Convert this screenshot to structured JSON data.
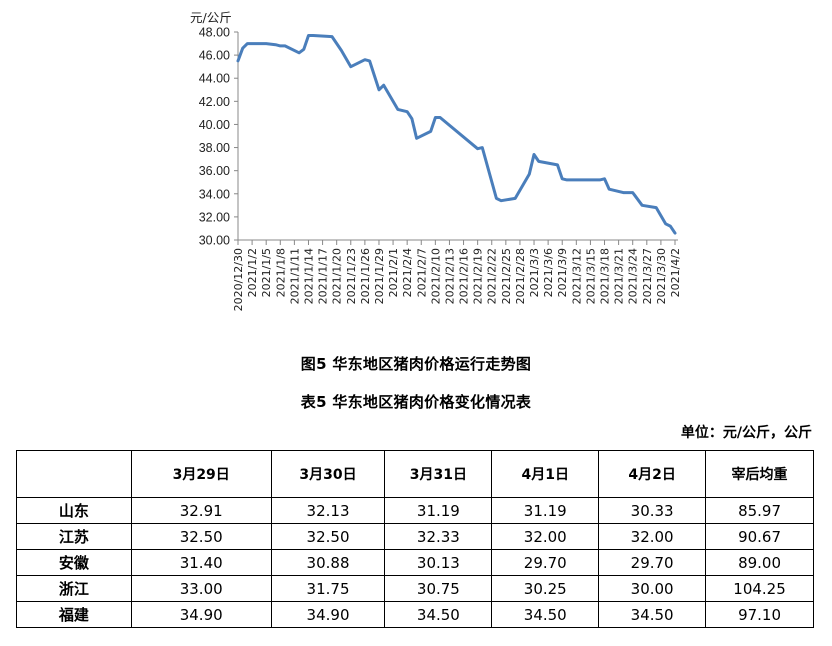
{
  "chart_data": {
    "type": "line",
    "title": "图5 华东地区猪肉价格运行走势图",
    "xlabel": "",
    "ylabel": "元/公斤",
    "ylim": [
      30,
      48
    ],
    "yticks": [
      "48.00",
      "46.00",
      "44.00",
      "42.00",
      "40.00",
      "38.00",
      "36.00",
      "34.00",
      "32.00",
      "30.00"
    ],
    "xticks": [
      "2020/12/30",
      "2021/1/2",
      "2021/1/5",
      "2021/1/8",
      "2021/1/11",
      "2021/1/14",
      "2021/1/17",
      "2021/1/20",
      "2021/1/23",
      "2021/1/26",
      "2021/1/29",
      "2021/2/1",
      "2021/2/4",
      "2021/2/7",
      "2021/2/10",
      "2021/2/13",
      "2021/2/16",
      "2021/2/19",
      "2021/2/22",
      "2021/2/25",
      "2021/2/28",
      "2021/3/3",
      "2021/3/6",
      "2021/3/9",
      "2021/3/12",
      "2021/3/15",
      "2021/3/18",
      "2021/3/21",
      "2021/3/24",
      "2021/3/27",
      "2021/3/30",
      "2021/4/2"
    ],
    "grid": false,
    "legend": null,
    "color": "#4a7ebb",
    "series": [
      {
        "name": "华东地区猪肉价格",
        "points": [
          [
            "2020/12/30",
            45.5
          ],
          [
            "2020/12/31",
            46.6
          ],
          [
            "2021/1/1",
            47.0
          ],
          [
            "2021/1/3",
            47.0
          ],
          [
            "2021/1/5",
            47.0
          ],
          [
            "2021/1/7",
            46.9
          ],
          [
            "2021/1/8",
            46.8
          ],
          [
            "2021/1/9",
            46.8
          ],
          [
            "2021/1/12",
            46.2
          ],
          [
            "2021/1/13",
            46.5
          ],
          [
            "2021/1/14",
            47.7
          ],
          [
            "2021/1/15",
            47.7
          ],
          [
            "2021/1/19",
            47.6
          ],
          [
            "2021/1/21",
            46.4
          ],
          [
            "2021/1/23",
            45.0
          ],
          [
            "2021/1/26",
            45.6
          ],
          [
            "2021/1/27",
            45.5
          ],
          [
            "2021/1/29",
            43.0
          ],
          [
            "2021/1/30",
            43.4
          ],
          [
            "2021/2/2",
            41.3
          ],
          [
            "2021/2/4",
            41.1
          ],
          [
            "2021/2/5",
            40.5
          ],
          [
            "2021/2/6",
            38.8
          ],
          [
            "2021/2/9",
            39.4
          ],
          [
            "2021/2/10",
            40.6
          ],
          [
            "2021/2/11",
            40.6
          ],
          [
            "2021/2/19",
            37.9
          ],
          [
            "2021/2/20",
            38.0
          ],
          [
            "2021/2/23",
            33.6
          ],
          [
            "2021/2/24",
            33.4
          ],
          [
            "2021/2/27",
            33.6
          ],
          [
            "2021/3/2",
            35.7
          ],
          [
            "2021/3/3",
            37.4
          ],
          [
            "2021/3/4",
            36.8
          ],
          [
            "2021/3/8",
            36.5
          ],
          [
            "2021/3/9",
            35.3
          ],
          [
            "2021/3/10",
            35.2
          ],
          [
            "2021/3/17",
            35.2
          ],
          [
            "2021/3/18",
            35.3
          ],
          [
            "2021/3/19",
            34.4
          ],
          [
            "2021/3/22",
            34.1
          ],
          [
            "2021/3/24",
            34.1
          ],
          [
            "2021/3/26",
            33.0
          ],
          [
            "2021/3/29",
            32.8
          ],
          [
            "2021/3/31",
            31.4
          ],
          [
            "2021/4/1",
            31.2
          ],
          [
            "2021/4/2",
            30.6
          ]
        ]
      }
    ]
  },
  "captions": {
    "figure": "图5 华东地区猪肉价格运行走势图",
    "table": "表5 华东地区猪肉价格变化情况表",
    "unit": "单位：元/公斤，公斤"
  },
  "table": {
    "headers": [
      "",
      "3月29日",
      "3月30日",
      "3月31日",
      "4月1日",
      "4月2日",
      "宰后均重"
    ],
    "rows": [
      [
        "山东",
        "32.91",
        "32.13",
        "31.19",
        "31.19",
        "30.33",
        "85.97"
      ],
      [
        "江苏",
        "32.50",
        "32.50",
        "32.33",
        "32.00",
        "32.00",
        "90.67"
      ],
      [
        "安徽",
        "31.40",
        "30.88",
        "30.13",
        "29.70",
        "29.70",
        "89.00"
      ],
      [
        "浙江",
        "33.00",
        "31.75",
        "30.75",
        "30.25",
        "30.00",
        "104.25"
      ],
      [
        "福建",
        "34.90",
        "34.90",
        "34.50",
        "34.50",
        "34.50",
        "97.10"
      ]
    ]
  }
}
